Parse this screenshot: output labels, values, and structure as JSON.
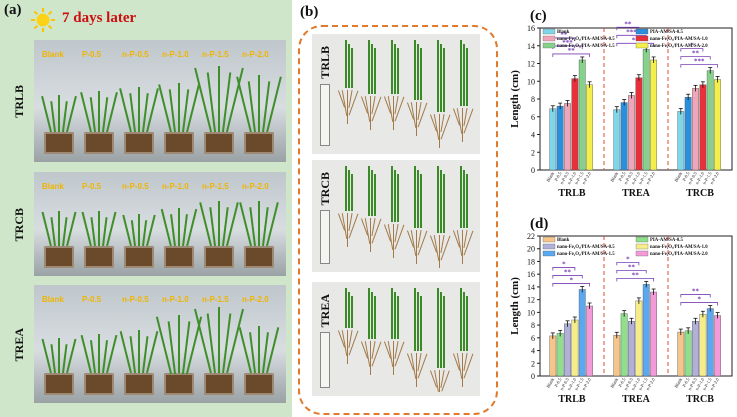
{
  "panel_a": {
    "label": "(a)",
    "header": "7 days later",
    "rows": [
      {
        "label": "TRLB",
        "pots": [
          "Blank",
          "P-0.5",
          "n-P-0.5",
          "n-P-1.0",
          "n-P-1.5",
          "n-P-2.0"
        ]
      },
      {
        "label": "TRCB",
        "pots": [
          "Blank",
          "P-0.5",
          "n-P-0.5",
          "n-P-1.0",
          "n-P-1.5",
          "n-P-2.0"
        ]
      },
      {
        "label": "TREA",
        "pots": [
          "Blank",
          "P-0.5",
          "n-P-0.5",
          "n-P-1.0",
          "n-P-1.5",
          "n-P-2.0"
        ]
      }
    ]
  },
  "panel_b": {
    "label": "(b)",
    "rows": [
      "TRLB",
      "TRCB",
      "TREA"
    ]
  },
  "colors": {
    "blank": "#7fd6e8",
    "pia": "#2b8fe0",
    "n05": "#f0a6b8",
    "n10": "#e8303a",
    "n15": "#86d28a",
    "n20": "#f2ef4a",
    "d_blank": "#f5c58a",
    "d_pia": "#8fe08a",
    "d_n05": "#b0b0d8",
    "d_n10": "#f6ec8a",
    "d_n15": "#5aa8ef",
    "d_n20": "#f39ad8"
  },
  "chart_data": [
    {
      "id": "c",
      "panel_label": "(c)",
      "type": "bar",
      "ylabel": "Length (cm)",
      "ylim": [
        0,
        16
      ],
      "yticks": [
        0,
        2,
        4,
        6,
        8,
        10,
        12,
        14,
        16
      ],
      "groups": [
        "TRLB",
        "TREA",
        "TRCB"
      ],
      "bar_tick_labels": [
        "Blank",
        "P-0.5",
        "n-P-0.5",
        "n-P-1.0",
        "n-P-1.5",
        "n-P-2.0"
      ],
      "legend": [
        "Blank",
        "PIA-AM/SA-0.5",
        "nano-Fe₂O₃/PIA-AM/SA-0.5",
        "nano-Fe₂O₃/PIA-AM/SA-1.0",
        "nano-Fe₂O₃/PIA-AM/SA-1.5",
        "nano-Fe₂O₃/PIA-AM/SA-2.0"
      ],
      "series_colors": [
        "#7fd6e8",
        "#2b8fe0",
        "#f0a6b8",
        "#e8303a",
        "#86d28a",
        "#f2ef4a"
      ],
      "values": [
        [
          6.9,
          7.2,
          7.5,
          10.3,
          12.4,
          9.6
        ],
        [
          6.8,
          7.6,
          8.4,
          10.4,
          13.6,
          12.4
        ],
        [
          6.6,
          8.2,
          9.2,
          9.6,
          11.2,
          10.2
        ]
      ],
      "significance": [
        [
          {
            "from": 0,
            "to": 3,
            "text": "**"
          },
          {
            "from": 0,
            "to": 4,
            "text": "***"
          },
          {
            "from": 0,
            "to": 5,
            "text": "**"
          }
        ],
        [
          {
            "from": 0,
            "to": 3,
            "text": "**"
          },
          {
            "from": 0,
            "to": 4,
            "text": "***"
          },
          {
            "from": 0,
            "to": 5,
            "text": "**"
          }
        ],
        [
          {
            "from": 0,
            "to": 3,
            "text": "*"
          },
          {
            "from": 0,
            "to": 4,
            "text": "**"
          },
          {
            "from": 0,
            "to": 5,
            "text": "***"
          }
        ]
      ]
    },
    {
      "id": "d",
      "panel_label": "(d)",
      "type": "bar",
      "ylabel": "Length (cm)",
      "ylim": [
        0,
        22
      ],
      "yticks": [
        0,
        2,
        4,
        6,
        8,
        10,
        12,
        14,
        16,
        18,
        20,
        22
      ],
      "groups": [
        "TRLB",
        "TREA",
        "TRCB"
      ],
      "bar_tick_labels": [
        "Blank",
        "P-0.5",
        "n-P-0.5",
        "n-P-1.0",
        "n-P-1.5",
        "n-P-2.0"
      ],
      "legend": [
        "Blank",
        "PIA-AM/SA-0.5",
        "nano-Fe₂O₃/PIA-AM/SA-0.5",
        "nano-Fe₂O₃/PIA-AM/SA-1.0",
        "nano-Fe₂O₃/PIA-AM/SA-1.5",
        "nano-Fe₂O₃/PIA-AM/SA-2.0"
      ],
      "series_colors": [
        "#f5c58a",
        "#8fe08a",
        "#b0b0d8",
        "#f6ec8a",
        "#5aa8ef",
        "#f39ad8"
      ],
      "values": [
        [
          6.3,
          6.7,
          8.2,
          8.8,
          13.6,
          11.0
        ],
        [
          6.4,
          9.8,
          8.6,
          11.8,
          14.4,
          13.2
        ],
        [
          6.9,
          7.1,
          8.6,
          9.7,
          10.6,
          9.5
        ]
      ],
      "significance": [
        [
          {
            "from": 0,
            "to": 3,
            "text": "*"
          },
          {
            "from": 0,
            "to": 4,
            "text": "**"
          },
          {
            "from": 0,
            "to": 5,
            "text": "*"
          }
        ],
        [
          {
            "from": 0,
            "to": 3,
            "text": "*"
          },
          {
            "from": 0,
            "to": 4,
            "text": "**"
          },
          {
            "from": 0,
            "to": 5,
            "text": "**"
          }
        ],
        [
          {
            "from": 0,
            "to": 4,
            "text": "**"
          },
          {
            "from": 0,
            "to": 5,
            "text": "*"
          }
        ]
      ]
    }
  ]
}
